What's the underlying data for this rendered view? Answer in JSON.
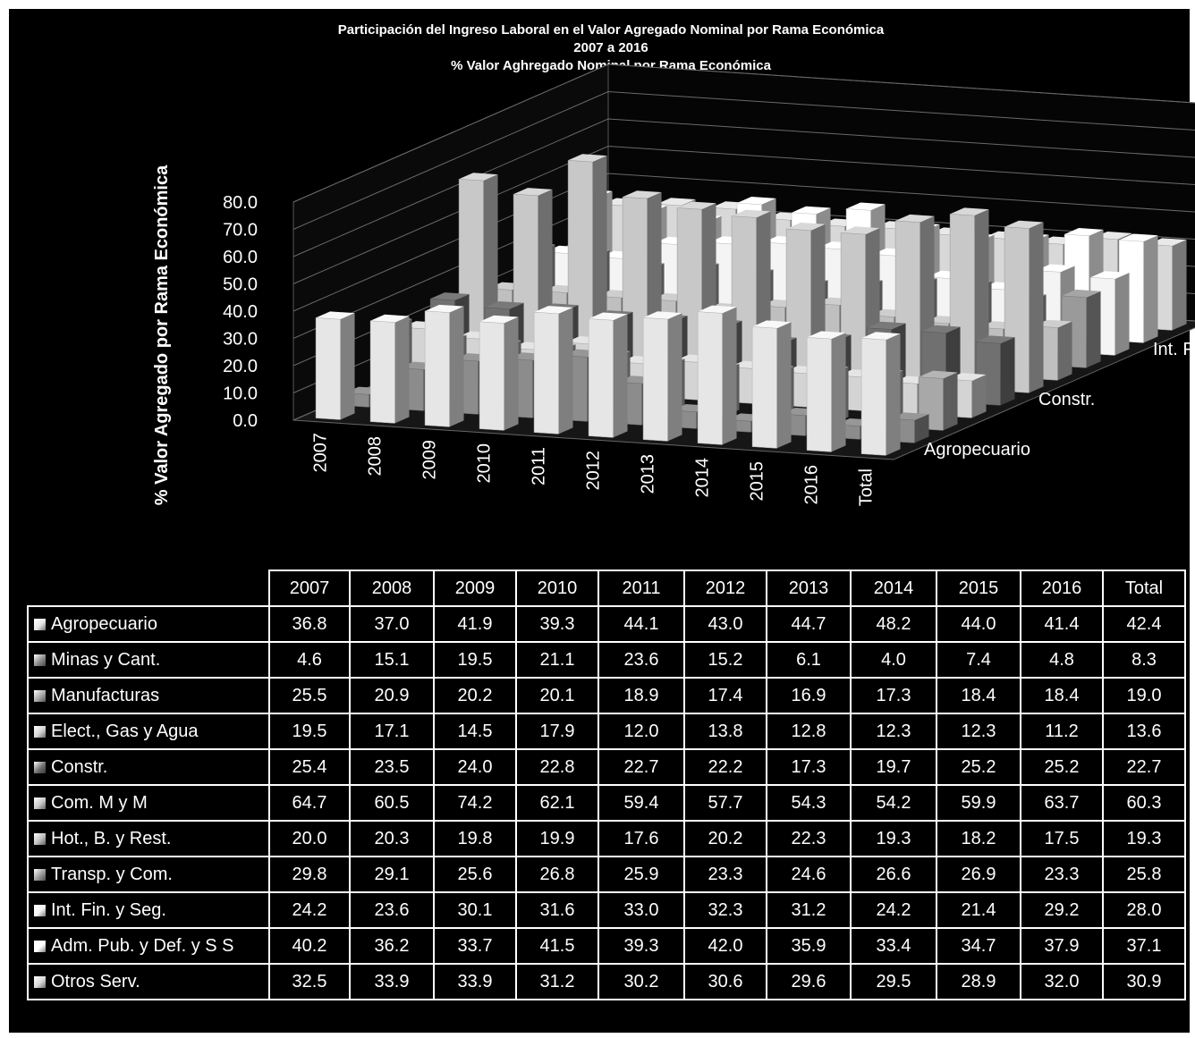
{
  "chart_data": {
    "type": "bar",
    "subtype": "3d-column",
    "title_lines": [
      "Participación del Ingreso Laboral en el Valor Agregado Nominal por Rama Económica",
      "2007 a 2016",
      "% Valor Aghregado Nominal por Rama Económica"
    ],
    "ylabel": "% Valor Agregado por Rama Económica",
    "ylim": [
      0,
      80
    ],
    "yticks": [
      "0.0",
      "10.0",
      "20.0",
      "30.0",
      "40.0",
      "50.0",
      "60.0",
      "70.0",
      "80.0"
    ],
    "categories": [
      "2007",
      "2008",
      "2009",
      "2010",
      "2011",
      "2012",
      "2013",
      "2014",
      "2015",
      "2016",
      "Total"
    ],
    "depth_axis_labels": [
      "Agropecuario",
      "Constr.",
      "Int. Fin. y Seg."
    ],
    "series": [
      {
        "name": "Agropecuario",
        "values": [
          36.8,
          37.0,
          41.9,
          39.3,
          44.1,
          43.0,
          44.7,
          48.2,
          44.0,
          41.4,
          42.4
        ]
      },
      {
        "name": "Minas y Cant.",
        "values": [
          4.6,
          15.1,
          19.5,
          21.1,
          23.6,
          15.2,
          6.1,
          4.0,
          7.4,
          4.8,
          8.3
        ]
      },
      {
        "name": "Manufacturas",
        "values": [
          25.5,
          20.9,
          20.2,
          20.1,
          18.9,
          17.4,
          16.9,
          17.3,
          18.4,
          18.4,
          19.0
        ]
      },
      {
        "name": "Elect., Gas y Agua",
        "values": [
          19.5,
          17.1,
          14.5,
          17.9,
          12.0,
          13.8,
          12.8,
          12.3,
          12.3,
          11.2,
          13.6
        ]
      },
      {
        "name": "Constr.",
        "values": [
          25.4,
          23.5,
          24.0,
          22.8,
          22.7,
          22.2,
          17.3,
          19.7,
          25.2,
          25.2,
          22.7
        ]
      },
      {
        "name": "Com. M y M",
        "values": [
          64.7,
          60.5,
          74.2,
          62.1,
          59.4,
          57.7,
          54.3,
          54.2,
          59.9,
          63.7,
          60.3
        ]
      },
      {
        "name": "Hot., B. y Rest.",
        "values": [
          20.0,
          20.3,
          19.8,
          19.9,
          17.6,
          20.2,
          22.3,
          19.3,
          18.2,
          17.5,
          19.3
        ]
      },
      {
        "name": "Transp. y Com.",
        "values": [
          29.8,
          29.1,
          25.6,
          26.8,
          25.9,
          23.3,
          24.6,
          26.6,
          26.9,
          23.3,
          25.8
        ]
      },
      {
        "name": "Int. Fin. y Seg.",
        "values": [
          24.2,
          23.6,
          30.1,
          31.6,
          33.0,
          32.3,
          31.2,
          24.2,
          21.4,
          29.2,
          28.0
        ]
      },
      {
        "name": "Adm. Pub. y Def. y S S",
        "values": [
          40.2,
          36.2,
          33.7,
          41.5,
          39.3,
          42.0,
          35.9,
          33.4,
          34.7,
          37.9,
          37.1
        ]
      },
      {
        "name": "Otros Serv.",
        "values": [
          32.5,
          33.9,
          33.9,
          31.2,
          30.2,
          30.6,
          29.6,
          29.5,
          28.9,
          32.0,
          30.9
        ]
      }
    ],
    "colors": [
      "#e6e6e6",
      "#8c8c8c",
      "#a8a8a8",
      "#d4d4d4",
      "#707070",
      "#c8c8c8",
      "#bfbfbf",
      "#9a9a9a",
      "#f4f4f4",
      "#ffffff",
      "#d8d8d8"
    ],
    "background": "#000000",
    "grid": true,
    "legend": "data-table"
  }
}
